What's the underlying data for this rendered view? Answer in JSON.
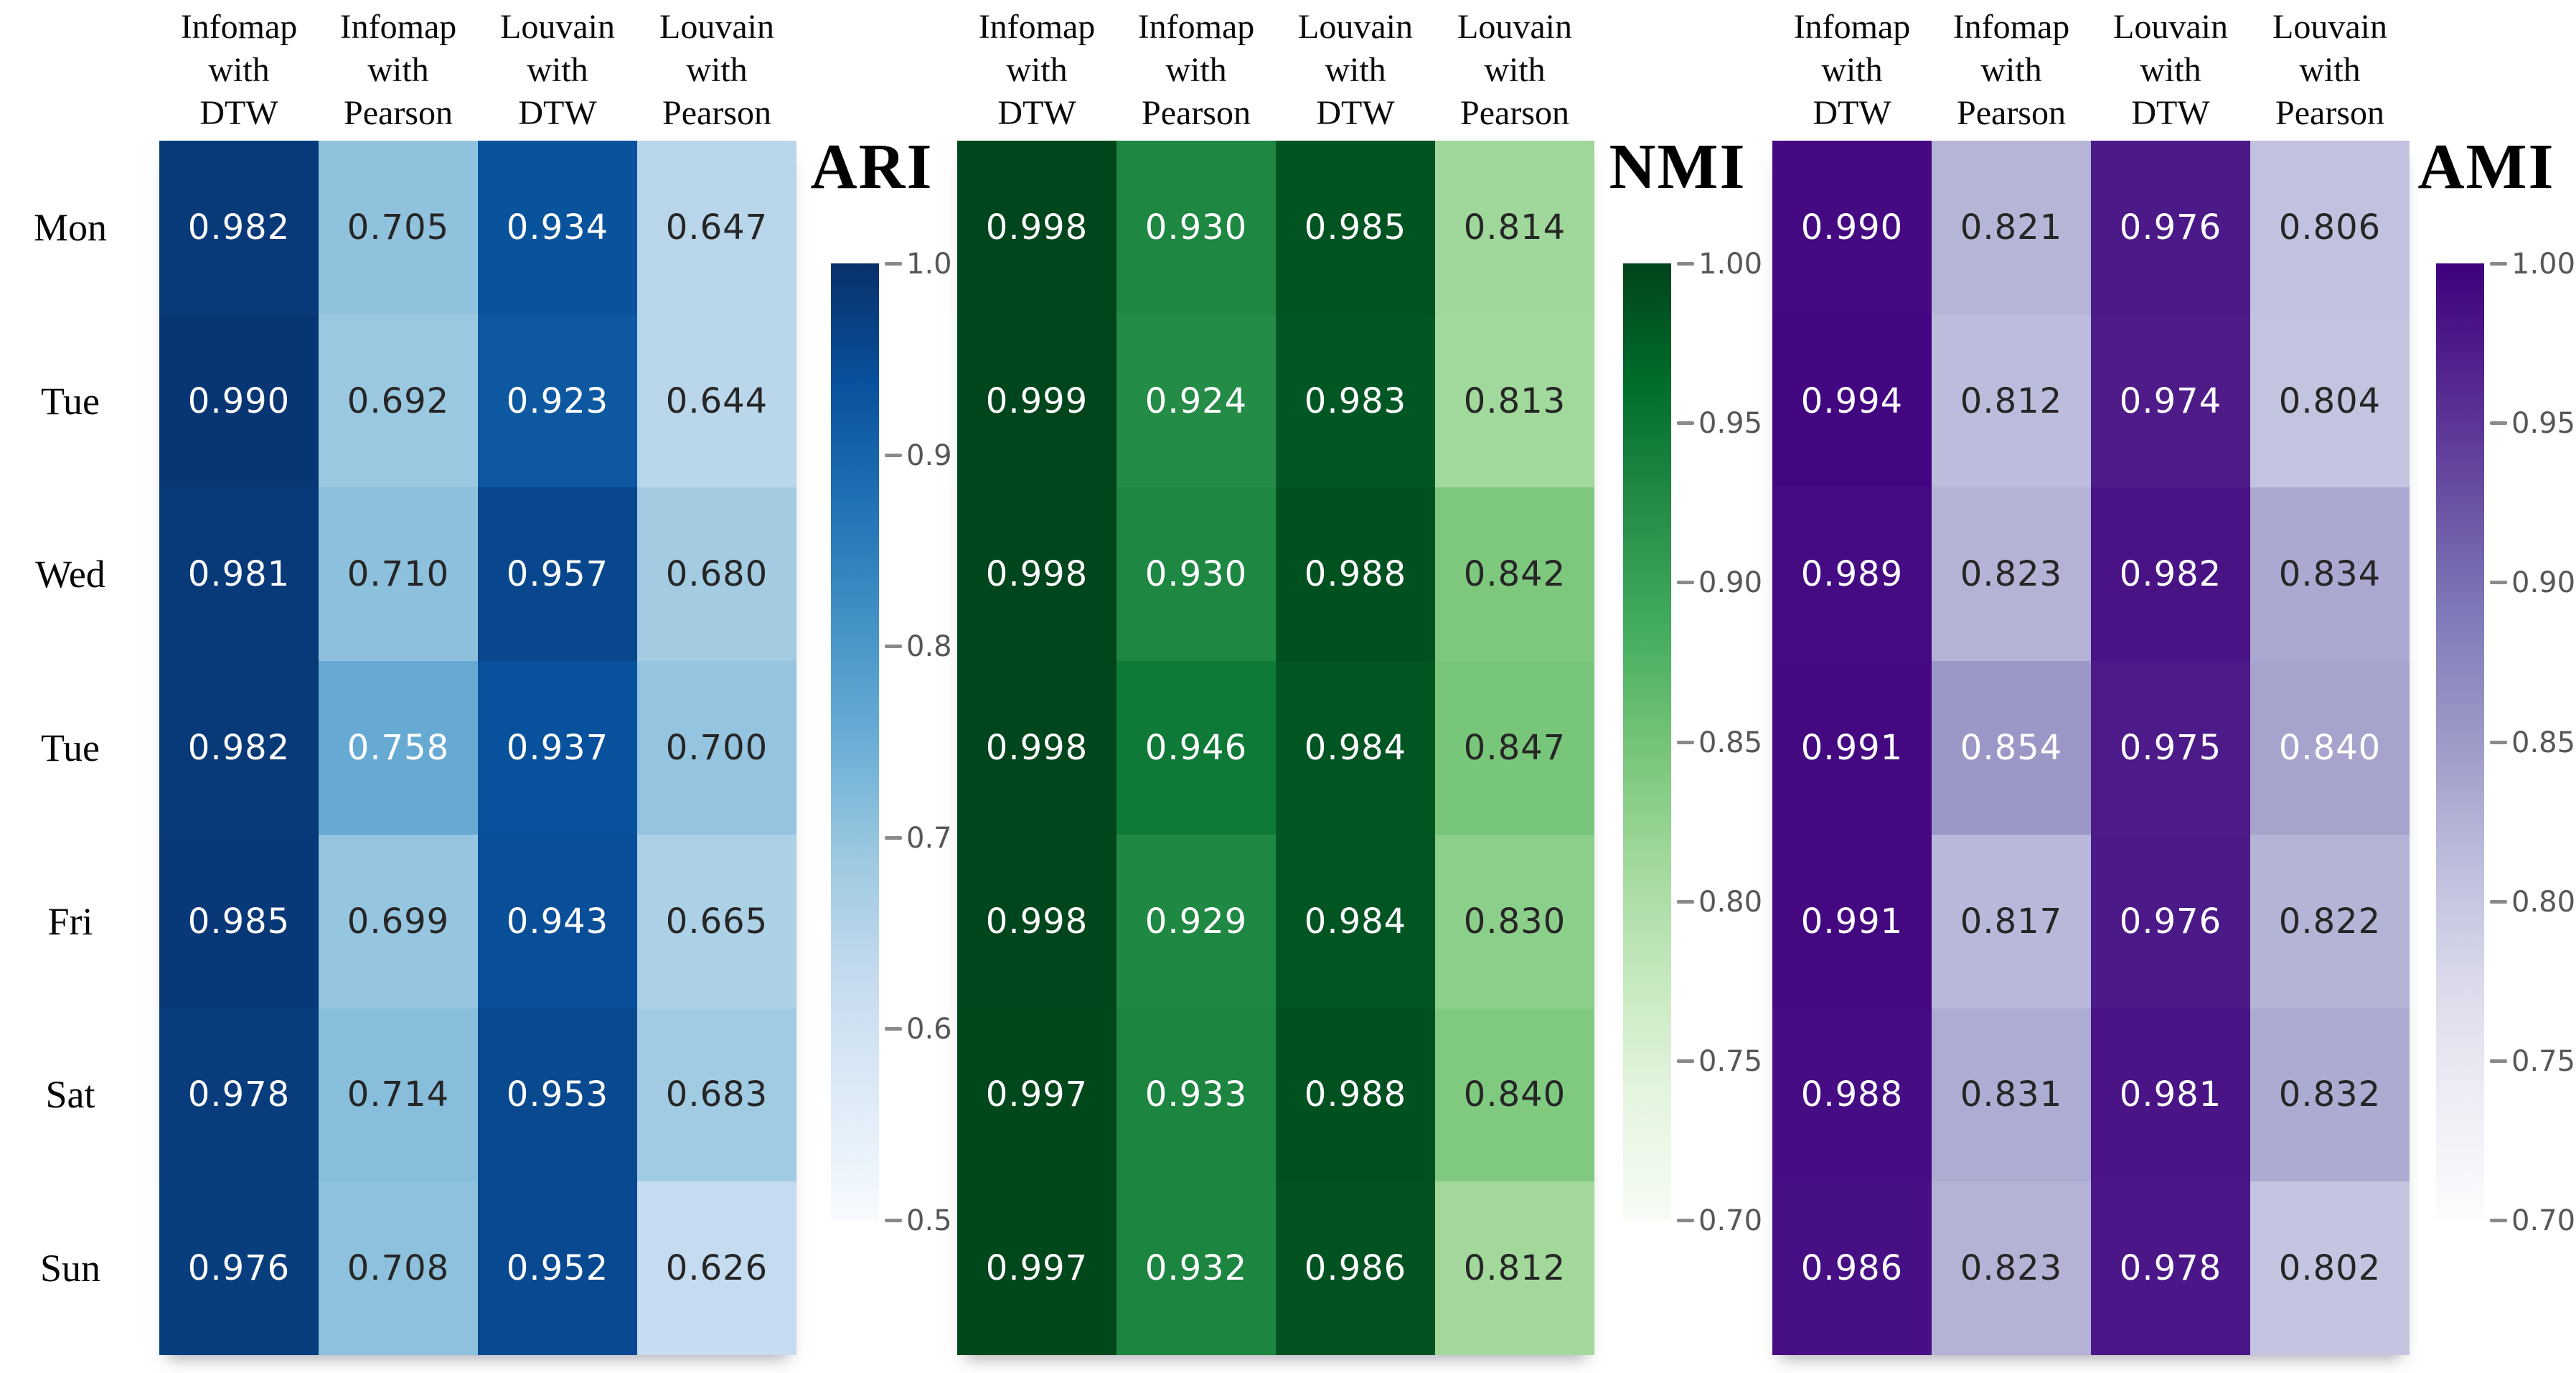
{
  "figure": {
    "background": "#ffffff",
    "row_labels": [
      "Mon",
      "Tue",
      "Wed",
      "Tue",
      "Fri",
      "Sat",
      "Sun"
    ],
    "col_header_lines": [
      [
        "Infomap",
        "with",
        "DTW"
      ],
      [
        "Infomap",
        "with",
        "Pearson"
      ],
      [
        "Louvain",
        "with",
        "DTW"
      ],
      [
        "Louvain",
        "with",
        "Pearson"
      ]
    ],
    "annotation_text_dark": "#262626",
    "annotation_text_light": "#ffffff",
    "header_text_color": "#0a0a0a",
    "row_label_text_color": "#050505",
    "title_text_color": "#000000",
    "tick_text_color": "#575757",
    "tick_mark_color": "#8a8a8a",
    "annotation_luminance_threshold": 0.408
  },
  "chart_data": [
    {
      "type": "heatmap",
      "title": "ARI",
      "rows": [
        "Mon",
        "Tue",
        "Wed",
        "Tue",
        "Fri",
        "Sat",
        "Sun"
      ],
      "columns": [
        "Infomap with DTW",
        "Infomap with Pearson",
        "Louvain with DTW",
        "Louvain with Pearson"
      ],
      "values": [
        [
          0.982,
          0.705,
          0.934,
          0.647
        ],
        [
          0.99,
          0.692,
          0.923,
          0.644
        ],
        [
          0.981,
          0.71,
          0.957,
          0.68
        ],
        [
          0.982,
          0.758,
          0.937,
          0.7
        ],
        [
          0.985,
          0.699,
          0.943,
          0.665
        ],
        [
          0.978,
          0.714,
          0.953,
          0.683
        ],
        [
          0.976,
          0.708,
          0.952,
          0.626
        ]
      ],
      "value_decimals": 3,
      "vmin": 0.5,
      "vmax": 1.0,
      "colormap_name": "Blues",
      "colormap": [
        "#f7fbff",
        "#deebf7",
        "#c6dbef",
        "#9ecae1",
        "#6baed6",
        "#4292c6",
        "#2171b5",
        "#08519c",
        "#08306b"
      ],
      "colorbar_ticks": [
        "1.0",
        "0.9",
        "0.8",
        "0.7",
        "0.6",
        "0.5"
      ],
      "colorbar_position": "right",
      "show_row_labels": true,
      "grid": false,
      "legend": false
    },
    {
      "type": "heatmap",
      "title": "NMI",
      "rows": [
        "Mon",
        "Tue",
        "Wed",
        "Tue",
        "Fri",
        "Sat",
        "Sun"
      ],
      "columns": [
        "Infomap with DTW",
        "Infomap with Pearson",
        "Louvain with DTW",
        "Louvain with Pearson"
      ],
      "values": [
        [
          0.998,
          0.93,
          0.985,
          0.814
        ],
        [
          0.999,
          0.924,
          0.983,
          0.813
        ],
        [
          0.998,
          0.93,
          0.988,
          0.842
        ],
        [
          0.998,
          0.946,
          0.984,
          0.847
        ],
        [
          0.998,
          0.929,
          0.984,
          0.83
        ],
        [
          0.997,
          0.933,
          0.988,
          0.84
        ],
        [
          0.997,
          0.932,
          0.986,
          0.812
        ]
      ],
      "value_decimals": 3,
      "vmin": 0.7,
      "vmax": 1.0,
      "colormap_name": "Greens",
      "colormap": [
        "#f7fcf5",
        "#e5f5e0",
        "#c7e9c0",
        "#a1d99b",
        "#74c476",
        "#41ab5d",
        "#238b45",
        "#006d2c",
        "#00441b"
      ],
      "colorbar_ticks": [
        "1.00",
        "0.95",
        "0.90",
        "0.85",
        "0.80",
        "0.75",
        "0.70"
      ],
      "colorbar_position": "right",
      "show_row_labels": false,
      "grid": false,
      "legend": false
    },
    {
      "type": "heatmap",
      "title": "AMI",
      "rows": [
        "Mon",
        "Tue",
        "Wed",
        "Tue",
        "Fri",
        "Sat",
        "Sun"
      ],
      "columns": [
        "Infomap with DTW",
        "Infomap with Pearson",
        "Louvain with DTW",
        "Louvain with Pearson"
      ],
      "values": [
        [
          0.99,
          0.821,
          0.976,
          0.806
        ],
        [
          0.994,
          0.812,
          0.974,
          0.804
        ],
        [
          0.989,
          0.823,
          0.982,
          0.834
        ],
        [
          0.991,
          0.854,
          0.975,
          0.84
        ],
        [
          0.991,
          0.817,
          0.976,
          0.822
        ],
        [
          0.988,
          0.831,
          0.981,
          0.832
        ],
        [
          0.986,
          0.823,
          0.978,
          0.802
        ]
      ],
      "value_decimals": 3,
      "vmin": 0.7,
      "vmax": 1.0,
      "colormap_name": "Purples",
      "colormap": [
        "#fcfbfd",
        "#efedf5",
        "#dadaeb",
        "#bcbddc",
        "#9e9ac8",
        "#807dba",
        "#6a51a3",
        "#54278f",
        "#3f007d"
      ],
      "colorbar_ticks": [
        "1.00",
        "0.95",
        "0.90",
        "0.85",
        "0.80",
        "0.75",
        "0.70"
      ],
      "colorbar_position": "right",
      "show_row_labels": false,
      "grid": false,
      "legend": false
    }
  ]
}
